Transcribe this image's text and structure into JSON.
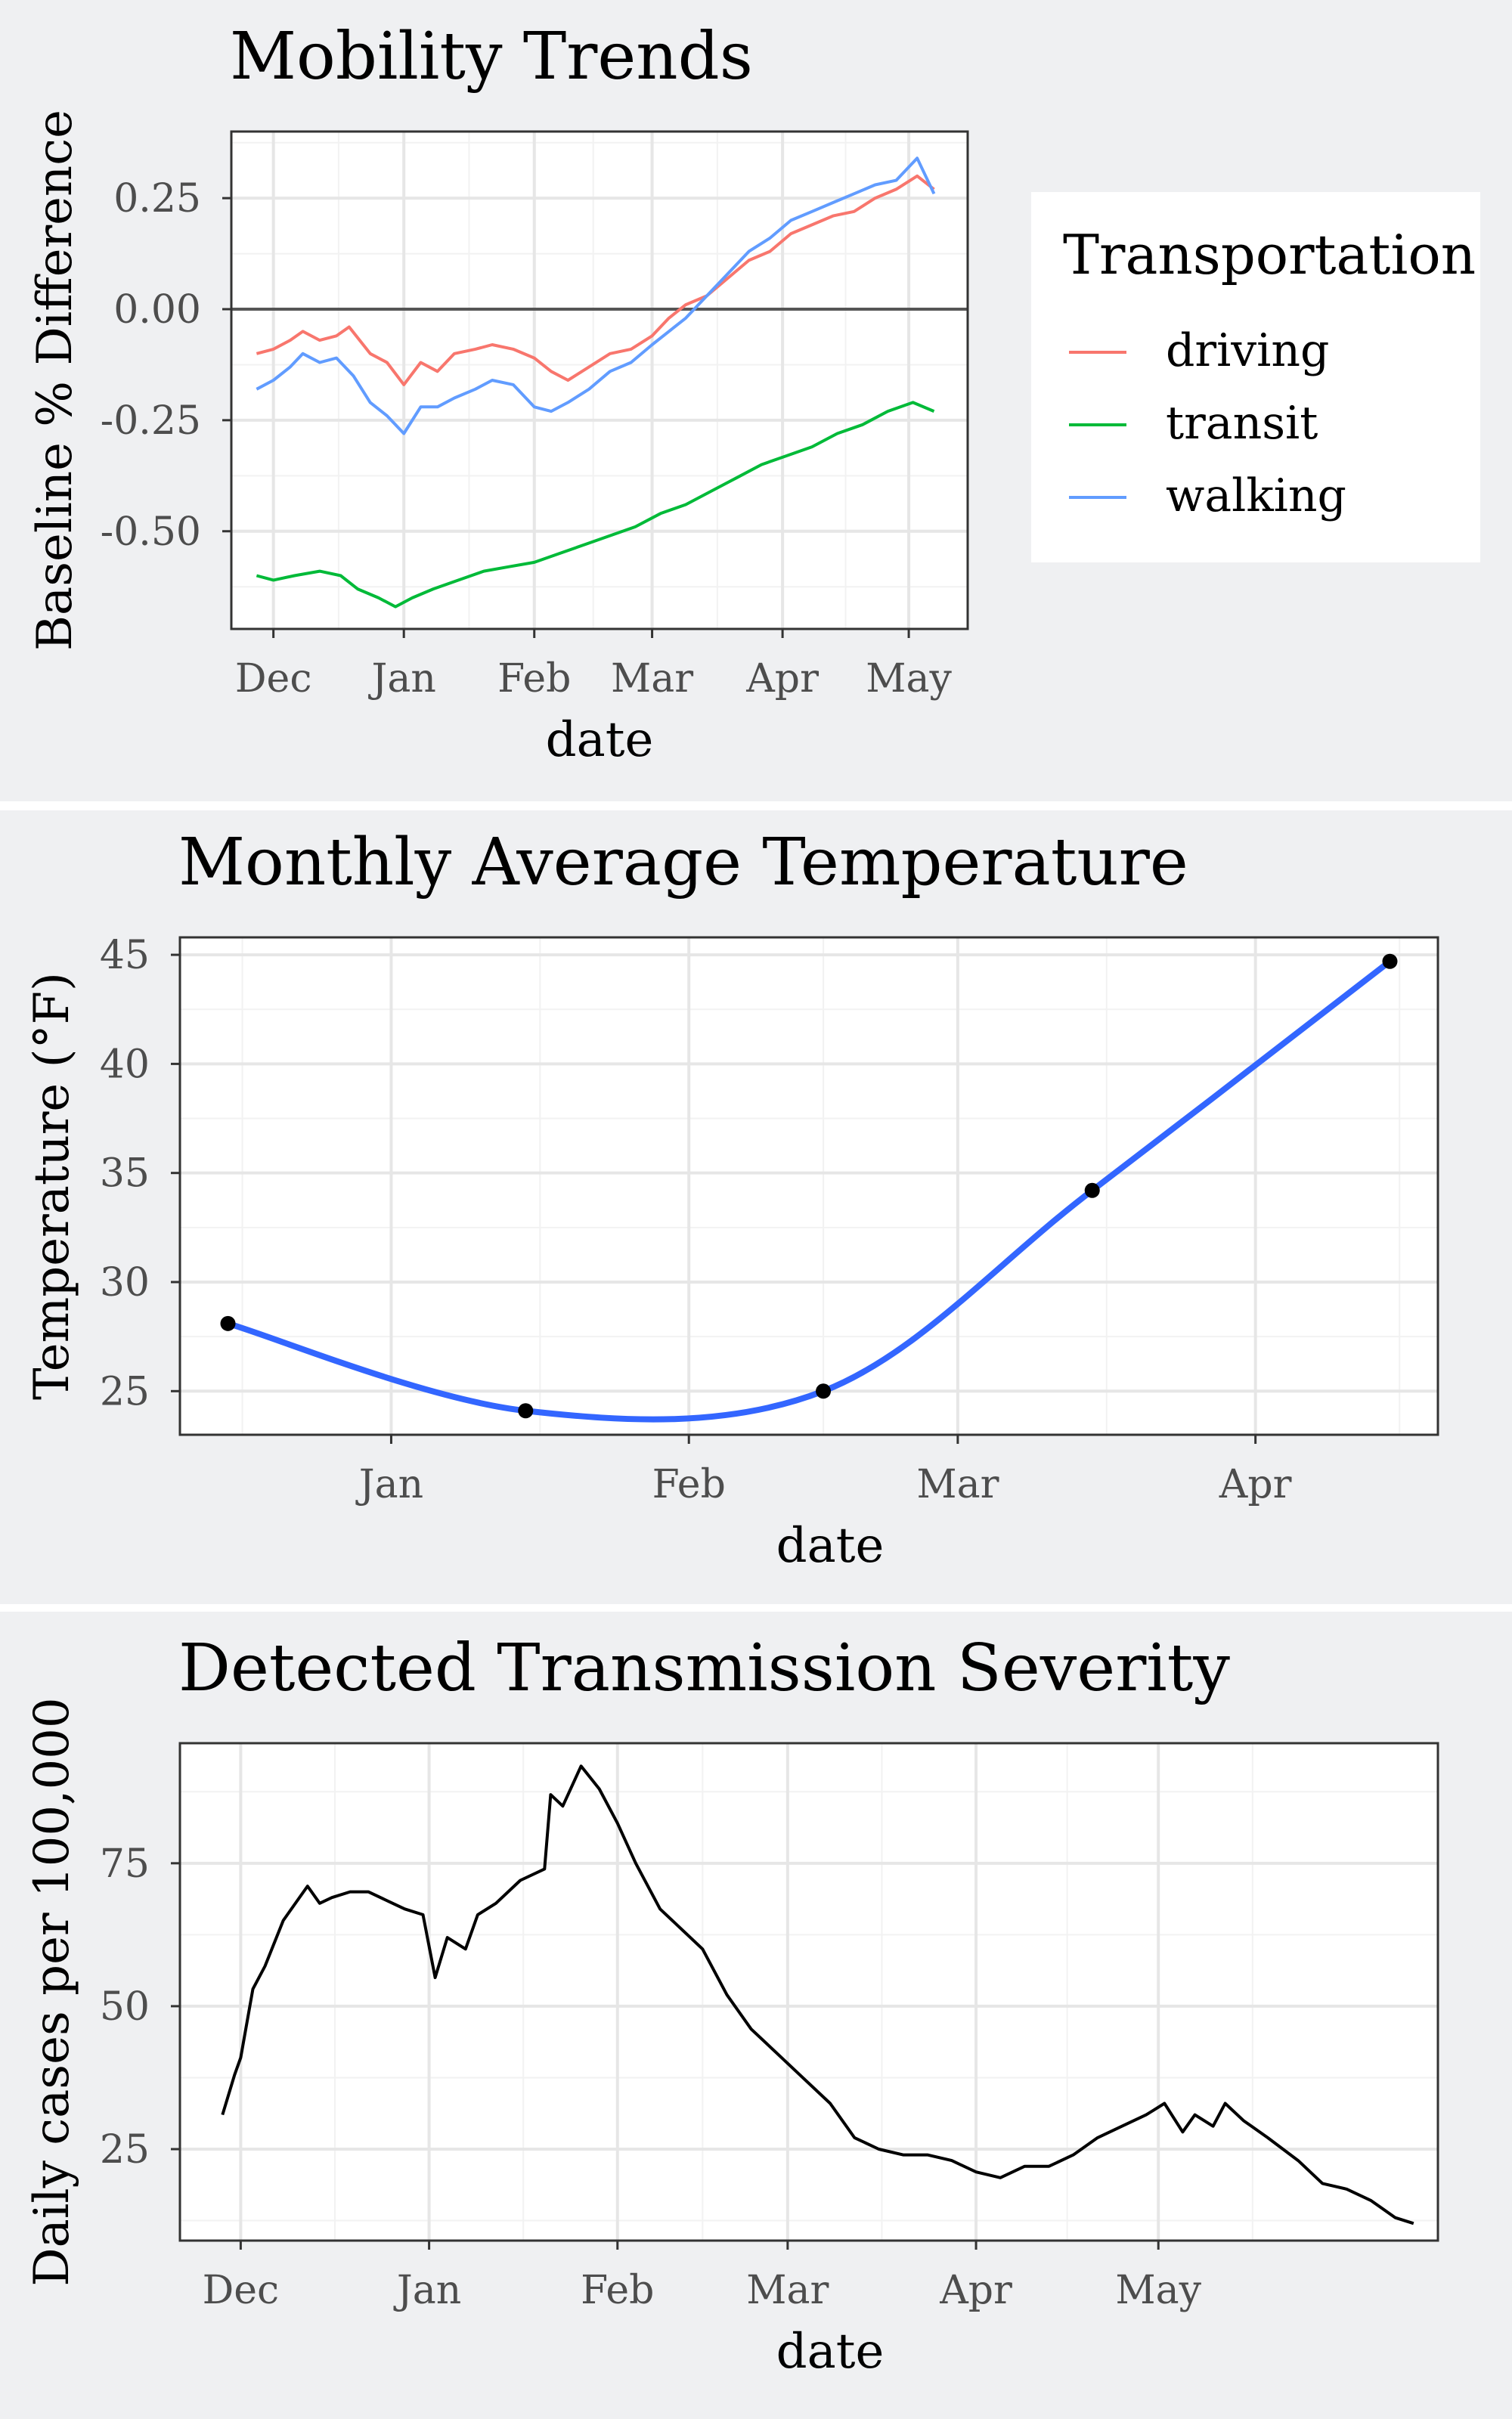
{
  "chart_data": [
    {
      "type": "line",
      "title": "Mobility Trends",
      "xlabel": "date",
      "ylabel": "Baseline % Difference",
      "x_ticks": [
        "Dec",
        "Jan",
        "Feb",
        "Mar",
        "Apr",
        "May"
      ],
      "y_ticks": [
        "0.25",
        "0.00",
        "-0.25",
        "-0.50"
      ],
      "ylim": [
        -0.72,
        0.4
      ],
      "reference_line": 0,
      "legend": {
        "title": "Transportation",
        "position": "right"
      },
      "series": [
        {
          "name": "driving",
          "color": "#f8766d",
          "points": [
            [
              "2020-11-27",
              -0.1
            ],
            [
              "2020-12-01",
              -0.09
            ],
            [
              "2020-12-05",
              -0.07
            ],
            [
              "2020-12-08",
              -0.05
            ],
            [
              "2020-12-12",
              -0.07
            ],
            [
              "2020-12-16",
              -0.06
            ],
            [
              "2020-12-19",
              -0.04
            ],
            [
              "2020-12-24",
              -0.1
            ],
            [
              "2020-12-28",
              -0.12
            ],
            [
              "2021-01-01",
              -0.17
            ],
            [
              "2021-01-05",
              -0.12
            ],
            [
              "2021-01-09",
              -0.14
            ],
            [
              "2021-01-13",
              -0.1
            ],
            [
              "2021-01-18",
              -0.09
            ],
            [
              "2021-01-22",
              -0.08
            ],
            [
              "2021-01-27",
              -0.09
            ],
            [
              "2021-02-01",
              -0.11
            ],
            [
              "2021-02-05",
              -0.14
            ],
            [
              "2021-02-09",
              -0.16
            ],
            [
              "2021-02-14",
              -0.13
            ],
            [
              "2021-02-19",
              -0.1
            ],
            [
              "2021-02-24",
              -0.09
            ],
            [
              "2021-03-01",
              -0.06
            ],
            [
              "2021-03-05",
              -0.02
            ],
            [
              "2021-03-09",
              0.01
            ],
            [
              "2021-03-14",
              0.03
            ],
            [
              "2021-03-19",
              0.07
            ],
            [
              "2021-03-24",
              0.11
            ],
            [
              "2021-03-29",
              0.13
            ],
            [
              "2021-04-03",
              0.17
            ],
            [
              "2021-04-08",
              0.19
            ],
            [
              "2021-04-13",
              0.21
            ],
            [
              "2021-04-18",
              0.22
            ],
            [
              "2021-04-23",
              0.25
            ],
            [
              "2021-04-28",
              0.27
            ],
            [
              "2021-05-03",
              0.3
            ],
            [
              "2021-05-07",
              0.27
            ]
          ]
        },
        {
          "name": "transit",
          "color": "#00ba38",
          "points": [
            [
              "2020-11-27",
              -0.6
            ],
            [
              "2020-12-01",
              -0.61
            ],
            [
              "2020-12-06",
              -0.6
            ],
            [
              "2020-12-12",
              -0.59
            ],
            [
              "2020-12-17",
              -0.6
            ],
            [
              "2020-12-21",
              -0.63
            ],
            [
              "2020-12-26",
              -0.65
            ],
            [
              "2020-12-30",
              -0.67
            ],
            [
              "2021-01-03",
              -0.65
            ],
            [
              "2021-01-08",
              -0.63
            ],
            [
              "2021-01-14",
              -0.61
            ],
            [
              "2021-01-20",
              -0.59
            ],
            [
              "2021-01-26",
              -0.58
            ],
            [
              "2021-02-01",
              -0.57
            ],
            [
              "2021-02-07",
              -0.55
            ],
            [
              "2021-02-13",
              -0.53
            ],
            [
              "2021-02-19",
              -0.51
            ],
            [
              "2021-02-25",
              -0.49
            ],
            [
              "2021-03-03",
              -0.46
            ],
            [
              "2021-03-09",
              -0.44
            ],
            [
              "2021-03-15",
              -0.41
            ],
            [
              "2021-03-21",
              -0.38
            ],
            [
              "2021-03-27",
              -0.35
            ],
            [
              "2021-04-02",
              -0.33
            ],
            [
              "2021-04-08",
              -0.31
            ],
            [
              "2021-04-14",
              -0.28
            ],
            [
              "2021-04-20",
              -0.26
            ],
            [
              "2021-04-26",
              -0.23
            ],
            [
              "2021-05-02",
              -0.21
            ],
            [
              "2021-05-07",
              -0.23
            ]
          ]
        },
        {
          "name": "walking",
          "color": "#619cff",
          "points": [
            [
              "2020-11-27",
              -0.18
            ],
            [
              "2020-12-01",
              -0.16
            ],
            [
              "2020-12-05",
              -0.13
            ],
            [
              "2020-12-08",
              -0.1
            ],
            [
              "2020-12-12",
              -0.12
            ],
            [
              "2020-12-16",
              -0.11
            ],
            [
              "2020-12-20",
              -0.15
            ],
            [
              "2020-12-24",
              -0.21
            ],
            [
              "2020-12-28",
              -0.24
            ],
            [
              "2021-01-01",
              -0.28
            ],
            [
              "2021-01-05",
              -0.22
            ],
            [
              "2021-01-09",
              -0.22
            ],
            [
              "2021-01-13",
              -0.2
            ],
            [
              "2021-01-18",
              -0.18
            ],
            [
              "2021-01-22",
              -0.16
            ],
            [
              "2021-01-27",
              -0.17
            ],
            [
              "2021-02-01",
              -0.22
            ],
            [
              "2021-02-05",
              -0.23
            ],
            [
              "2021-02-09",
              -0.21
            ],
            [
              "2021-02-14",
              -0.18
            ],
            [
              "2021-02-19",
              -0.14
            ],
            [
              "2021-02-24",
              -0.12
            ],
            [
              "2021-03-01",
              -0.08
            ],
            [
              "2021-03-05",
              -0.05
            ],
            [
              "2021-03-09",
              -0.02
            ],
            [
              "2021-03-14",
              0.03
            ],
            [
              "2021-03-19",
              0.08
            ],
            [
              "2021-03-24",
              0.13
            ],
            [
              "2021-03-29",
              0.16
            ],
            [
              "2021-04-03",
              0.2
            ],
            [
              "2021-04-08",
              0.22
            ],
            [
              "2021-04-13",
              0.24
            ],
            [
              "2021-04-18",
              0.26
            ],
            [
              "2021-04-23",
              0.28
            ],
            [
              "2021-04-28",
              0.29
            ],
            [
              "2021-05-03",
              0.34
            ],
            [
              "2021-05-07",
              0.26
            ]
          ]
        }
      ]
    },
    {
      "type": "line",
      "title": "Monthly Average Temperature",
      "xlabel": "date",
      "ylabel": "Temperature (°F)",
      "x_ticks": [
        "Jan",
        "Feb",
        "Mar",
        "Apr"
      ],
      "y_ticks": [
        "45",
        "40",
        "35",
        "30",
        "25"
      ],
      "ylim": [
        23,
        45.8
      ],
      "series": [
        {
          "color": "#3366ff",
          "points": [
            [
              "2020-12-15",
              28.1
            ],
            [
              "2021-01-15",
              24.1
            ],
            [
              "2021-02-15",
              25.0
            ],
            [
              "2021-03-15",
              34.2
            ],
            [
              "2021-04-15",
              44.7
            ]
          ]
        }
      ]
    },
    {
      "type": "line",
      "title": "Detected Transmission Severity",
      "xlabel": "date",
      "ylabel": "Daily cases per 100,000",
      "x_ticks": [
        "Dec",
        "Jan",
        "Feb",
        "Mar",
        "Apr",
        "May"
      ],
      "y_ticks": [
        "75",
        "50",
        "25"
      ],
      "ylim": [
        9,
        96
      ],
      "series": [
        {
          "color": "#000000",
          "points": [
            [
              "2020-11-28",
              31
            ],
            [
              "2020-11-30",
              38
            ],
            [
              "2020-12-01",
              41
            ],
            [
              "2020-12-03",
              53
            ],
            [
              "2020-12-05",
              57
            ],
            [
              "2020-12-08",
              65
            ],
            [
              "2020-12-12",
              71
            ],
            [
              "2020-12-14",
              68
            ],
            [
              "2020-12-16",
              69
            ],
            [
              "2020-12-19",
              70
            ],
            [
              "2020-12-22",
              70
            ],
            [
              "2020-12-26",
              68
            ],
            [
              "2020-12-28",
              67
            ],
            [
              "2020-12-31",
              66
            ],
            [
              "2021-01-02",
              55
            ],
            [
              "2021-01-04",
              62
            ],
            [
              "2021-01-07",
              60
            ],
            [
              "2021-01-09",
              66
            ],
            [
              "2021-01-12",
              68
            ],
            [
              "2021-01-16",
              72
            ],
            [
              "2021-01-20",
              74
            ],
            [
              "2021-01-21",
              87
            ],
            [
              "2021-01-23",
              85
            ],
            [
              "2021-01-26",
              92
            ],
            [
              "2021-01-29",
              88
            ],
            [
              "2021-02-01",
              82
            ],
            [
              "2021-02-04",
              75
            ],
            [
              "2021-02-08",
              67
            ],
            [
              "2021-02-12",
              63
            ],
            [
              "2021-02-15",
              60
            ],
            [
              "2021-02-19",
              52
            ],
            [
              "2021-02-23",
              46
            ],
            [
              "2021-02-27",
              42
            ],
            [
              "2021-03-03",
              38
            ],
            [
              "2021-03-08",
              33
            ],
            [
              "2021-03-12",
              27
            ],
            [
              "2021-03-16",
              25
            ],
            [
              "2021-03-20",
              24
            ],
            [
              "2021-03-24",
              24
            ],
            [
              "2021-03-28",
              23
            ],
            [
              "2021-04-01",
              21
            ],
            [
              "2021-04-05",
              20
            ],
            [
              "2021-04-09",
              22
            ],
            [
              "2021-04-13",
              22
            ],
            [
              "2021-04-17",
              24
            ],
            [
              "2021-04-21",
              27
            ],
            [
              "2021-04-25",
              29
            ],
            [
              "2021-04-29",
              31
            ],
            [
              "2021-05-02",
              33
            ],
            [
              "2021-05-05",
              28
            ],
            [
              "2021-05-07",
              31
            ],
            [
              "2021-05-10",
              29
            ],
            [
              "2021-05-12",
              33
            ],
            [
              "2021-05-15",
              30
            ],
            [
              "2021-05-19",
              27
            ],
            [
              "2021-05-24",
              23
            ],
            [
              "2021-05-28",
              19
            ],
            [
              "2021-06-01",
              18
            ],
            [
              "2021-06-05",
              16
            ],
            [
              "2021-06-09",
              13
            ],
            [
              "2021-06-12",
              12
            ]
          ]
        }
      ]
    }
  ]
}
